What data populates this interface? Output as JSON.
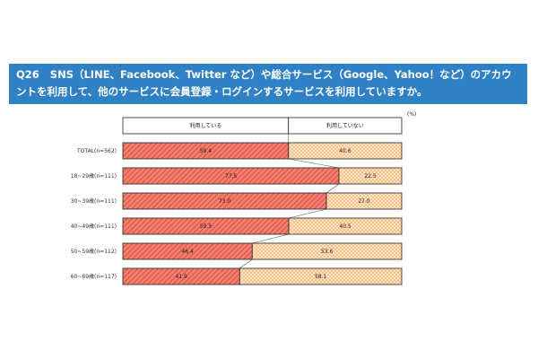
{
  "header": {
    "qnum": "Q26",
    "question": "SNS（LINE、Facebook、Twitter など）や総合サービス（Google、Yahoo！など）のアカウントを利用して、他のサービスに会員登録・ログインするサービスを利用していますか。"
  },
  "colors": {
    "header_bg": "#2f80c4",
    "using_fill": "#f08070",
    "using_hatch": "#d9402f",
    "not_using_fill": "#fde3c8",
    "not_using_hatch": "#f0a050"
  },
  "chart_data": {
    "type": "bar",
    "orientation": "horizontal-stacked-100",
    "unit": "(%)",
    "legend": [
      "利用している",
      "利用していない"
    ],
    "categories": [
      "TOTAL(n=562)",
      "18~29歳(n=111)",
      "30~39歳(n=111)",
      "40~49歳(n=111)",
      "50~59歳(n=112)",
      "60~69歳(n=117)"
    ],
    "series": [
      {
        "name": "利用している",
        "values": [
          59.4,
          77.5,
          73.0,
          59.5,
          46.4,
          41.9
        ]
      },
      {
        "name": "利用していない",
        "values": [
          40.6,
          22.5,
          27.0,
          40.5,
          53.6,
          58.1
        ]
      }
    ],
    "xlim": [
      0,
      100
    ]
  }
}
